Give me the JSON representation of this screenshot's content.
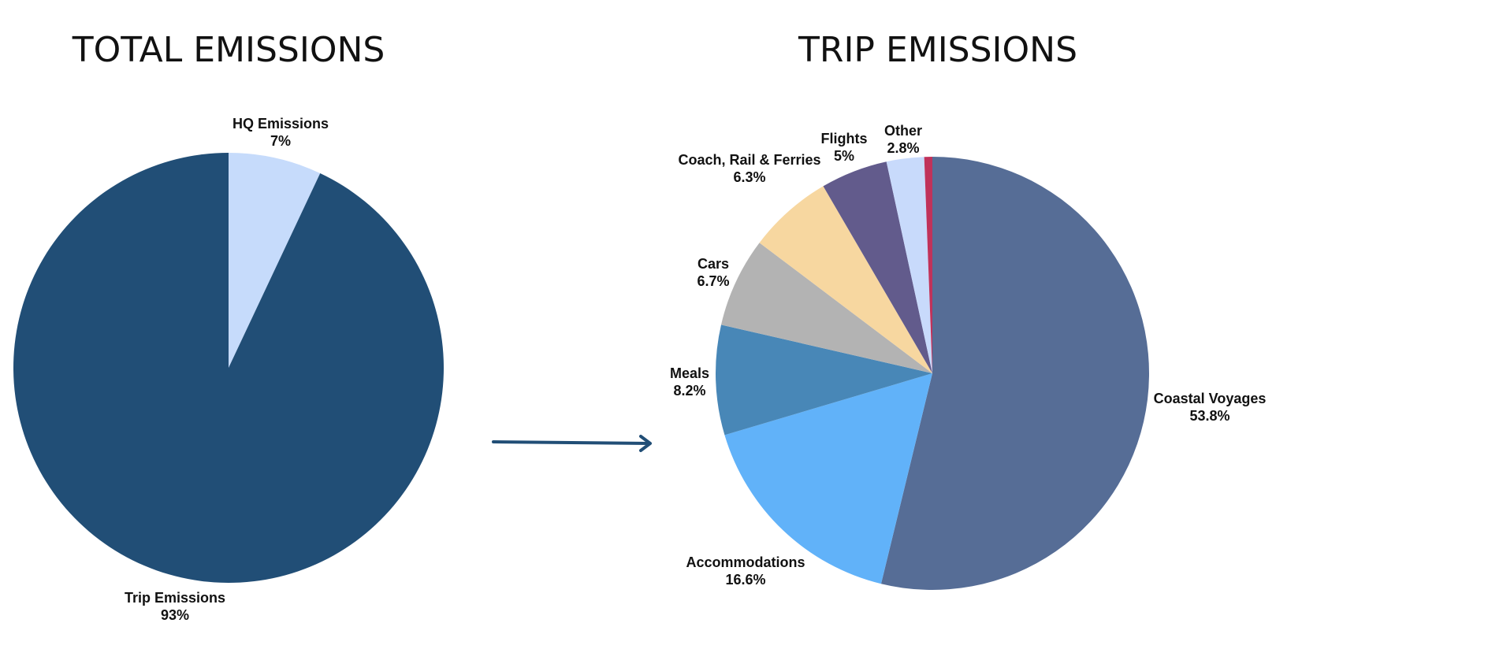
{
  "chart_data": [
    {
      "type": "pie",
      "title": "TOTAL EMISSIONS",
      "unit": "%",
      "slices": [
        {
          "label": "HQ Emissions",
          "value": 7,
          "display": "7%",
          "color": "#c6dbfb"
        },
        {
          "label": "Trip Emissions",
          "value": 93,
          "display": "93%",
          "color": "#214e76"
        }
      ]
    },
    {
      "type": "pie",
      "title": "TRIP EMISSIONS",
      "unit": "%",
      "slices": [
        {
          "label": "Coastal Voyages",
          "value": 53.8,
          "display": "53.8%",
          "color": "#566d96"
        },
        {
          "label": "Accommodations",
          "value": 16.6,
          "display": "16.6%",
          "color": "#61b2f9"
        },
        {
          "label": "Meals",
          "value": 8.2,
          "display": "8.2%",
          "color": "#4887b7"
        },
        {
          "label": "Cars",
          "value": 6.7,
          "display": "6.7%",
          "color": "#b3b3b3"
        },
        {
          "label": "Coach, Rail & Ferries",
          "value": 6.3,
          "display": "6.3%",
          "color": "#f7d7a0"
        },
        {
          "label": "Flights",
          "value": 5,
          "display": "5%",
          "color": "#625b8c"
        },
        {
          "label": "Other",
          "value": 2.8,
          "display": "2.8%",
          "color": "#c8dafb"
        },
        {
          "label": "",
          "value": 0.6,
          "display": "",
          "color": "#c0325a"
        }
      ]
    }
  ],
  "connector": {
    "color": "#214e76"
  }
}
